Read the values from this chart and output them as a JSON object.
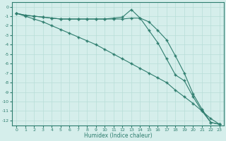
{
  "xlabel": "Humidex (Indice chaleur)",
  "ylabel": "",
  "background_color": "#d5eeeb",
  "line_color": "#2e7d6e",
  "grid_color": "#b8ddd8",
  "xlim": [
    -0.5,
    23.5
  ],
  "ylim": [
    -12.5,
    0.5
  ],
  "yticks": [
    0,
    -1,
    -2,
    -3,
    -4,
    -5,
    -6,
    -7,
    -8,
    -9,
    -10,
    -11,
    -12
  ],
  "xticks": [
    0,
    1,
    2,
    3,
    4,
    5,
    6,
    7,
    8,
    9,
    10,
    11,
    12,
    13,
    14,
    15,
    16,
    17,
    18,
    19,
    20,
    21,
    22,
    23
  ],
  "series": [
    {
      "x": [
        0,
        1,
        2,
        3,
        4,
        5,
        6,
        7,
        8,
        9,
        10,
        11,
        12,
        13,
        14,
        15,
        16,
        17,
        18,
        19,
        20,
        21,
        22,
        23
      ],
      "y": [
        -0.7,
        -0.9,
        -1.0,
        -1.1,
        -1.2,
        -1.3,
        -1.3,
        -1.3,
        -1.3,
        -1.3,
        -1.3,
        -1.3,
        -1.3,
        -1.2,
        -1.2,
        -1.6,
        -2.5,
        -3.5,
        -5.2,
        -7.0,
        -9.2,
        -10.8,
        -12.2,
        -12.4
      ]
    },
    {
      "x": [
        0,
        1,
        2,
        3,
        4,
        5,
        6,
        7,
        8,
        9,
        10,
        11,
        12,
        13,
        14,
        15,
        16,
        17,
        18,
        19,
        20,
        21,
        22,
        23
      ],
      "y": [
        -0.7,
        -1.0,
        -1.3,
        -1.6,
        -2.0,
        -2.4,
        -2.8,
        -3.2,
        -3.6,
        -4.0,
        -4.5,
        -5.0,
        -5.5,
        -6.0,
        -6.5,
        -7.0,
        -7.5,
        -8.0,
        -8.8,
        -9.5,
        -10.2,
        -11.0,
        -11.8,
        -12.4
      ]
    },
    {
      "x": [
        0,
        1,
        2,
        3,
        4,
        5,
        6,
        7,
        8,
        9,
        10,
        11,
        12,
        13,
        14,
        15,
        16,
        17,
        18,
        19,
        20,
        21,
        22,
        23
      ],
      "y": [
        -0.7,
        -0.9,
        -1.0,
        -1.1,
        -1.2,
        -1.3,
        -1.3,
        -1.3,
        -1.3,
        -1.3,
        -1.3,
        -1.2,
        -1.1,
        -0.3,
        -1.2,
        -2.5,
        -3.8,
        -5.5,
        -7.2,
        -7.8,
        -9.5,
        -11.0,
        -12.2,
        -12.4
      ]
    }
  ]
}
